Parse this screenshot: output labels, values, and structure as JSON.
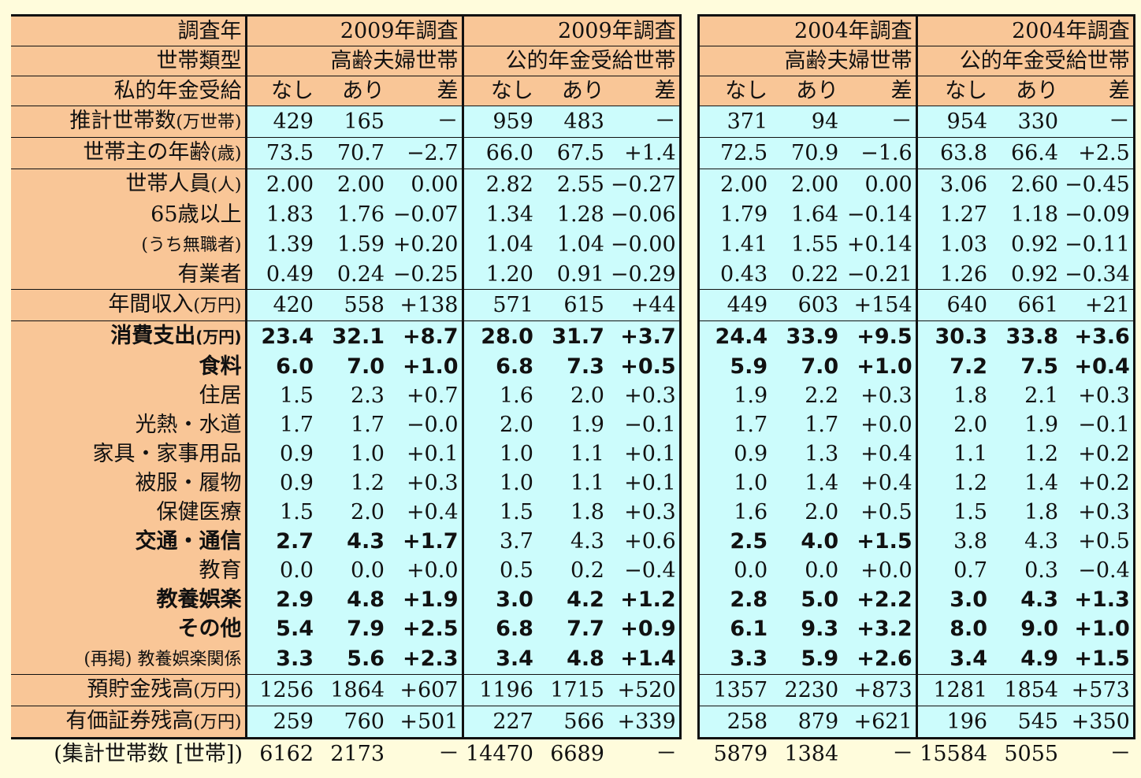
{
  "header_rows": [
    {
      "label": "調査年",
      "groups": [
        "2009年調査",
        "2009年調査",
        "2004年調査",
        "2004年調査"
      ]
    },
    {
      "label": "世帯類型",
      "groups": [
        "高齢夫婦世帯",
        "公的年金受給世帯",
        "高齢夫婦世帯",
        "公的年金受給世帯"
      ]
    },
    {
      "label": "私的年金受給",
      "subheads": [
        "なし",
        "あり",
        "差"
      ]
    }
  ],
  "rows": [
    {
      "label": "推計世帯数",
      "unit": "(万世帯)",
      "indent": 0,
      "bold_groups": [],
      "values": [
        [
          "429",
          "165",
          "－"
        ],
        [
          "959",
          "483",
          "－"
        ],
        [
          "371",
          "94",
          "－"
        ],
        [
          "954",
          "330",
          "－"
        ]
      ]
    },
    {
      "label": "世帯主の年齢",
      "unit": "(歳)",
      "indent": 0,
      "bold_groups": [],
      "values": [
        [
          "73.5",
          "70.7",
          "−2.7"
        ],
        [
          "66.0",
          "67.5",
          "+1.4"
        ],
        [
          "72.5",
          "70.9",
          "−1.6"
        ],
        [
          "63.8",
          "66.4",
          "+2.5"
        ]
      ]
    },
    {
      "label": "世帯人員",
      "unit": "(人)",
      "indent": 0,
      "bold_groups": [],
      "values": [
        [
          "2.00",
          "2.00",
          "0.00"
        ],
        [
          "2.82",
          "2.55",
          "−0.27"
        ],
        [
          "2.00",
          "2.00",
          "0.00"
        ],
        [
          "3.06",
          "2.60",
          "−0.45"
        ]
      ]
    },
    {
      "label": "65歳以上",
      "unit": "",
      "indent": 1,
      "bold_groups": [],
      "values": [
        [
          "1.83",
          "1.76",
          "−0.07"
        ],
        [
          "1.34",
          "1.28",
          "−0.06"
        ],
        [
          "1.79",
          "1.64",
          "−0.14"
        ],
        [
          "1.27",
          "1.18",
          "−0.09"
        ]
      ]
    },
    {
      "label": "(うち無職者)",
      "unit": "",
      "indent": 1,
      "small": true,
      "bold_groups": [],
      "values": [
        [
          "1.39",
          "1.59",
          "+0.20"
        ],
        [
          "1.04",
          "1.04",
          "−0.00"
        ],
        [
          "1.41",
          "1.55",
          "+0.14"
        ],
        [
          "1.03",
          "0.92",
          "−0.11"
        ]
      ]
    },
    {
      "label": "有業者",
      "unit": "",
      "indent": 1,
      "bold_groups": [],
      "values": [
        [
          "0.49",
          "0.24",
          "−0.25"
        ],
        [
          "1.20",
          "0.91",
          "−0.29"
        ],
        [
          "0.43",
          "0.22",
          "−0.21"
        ],
        [
          "1.26",
          "0.92",
          "−0.34"
        ]
      ]
    },
    {
      "label": "年間収入",
      "unit": "(万円)",
      "indent": 0,
      "bold_groups": [],
      "values": [
        [
          "420",
          "558",
          "+138"
        ],
        [
          "571",
          "615",
          "+44"
        ],
        [
          "449",
          "603",
          "+154"
        ],
        [
          "640",
          "661",
          "+21"
        ]
      ]
    },
    {
      "label": "消費支出",
      "unit": "(万円)",
      "indent": 0,
      "bold_label": true,
      "bold_groups": [
        0,
        1,
        2,
        3
      ],
      "values": [
        [
          "23.4",
          "32.1",
          "+8.7"
        ],
        [
          "28.0",
          "31.7",
          "+3.7"
        ],
        [
          "24.4",
          "33.9",
          "+9.5"
        ],
        [
          "30.3",
          "33.8",
          "+3.6"
        ]
      ]
    },
    {
      "label": "食料",
      "unit": "",
      "indent": 2,
      "bold_label": true,
      "bold_groups": [
        0,
        1,
        2,
        3
      ],
      "values": [
        [
          "6.0",
          "7.0",
          "+1.0"
        ],
        [
          "6.8",
          "7.3",
          "+0.5"
        ],
        [
          "5.9",
          "7.0",
          "+1.0"
        ],
        [
          "7.2",
          "7.5",
          "+0.4"
        ]
      ]
    },
    {
      "label": "住居",
      "unit": "",
      "indent": 2,
      "bold_groups": [],
      "values": [
        [
          "1.5",
          "2.3",
          "+0.7"
        ],
        [
          "1.6",
          "2.0",
          "+0.3"
        ],
        [
          "1.9",
          "2.2",
          "+0.3"
        ],
        [
          "1.8",
          "2.1",
          "+0.3"
        ]
      ]
    },
    {
      "label": "光熱・水道",
      "unit": "",
      "indent": 2,
      "bold_groups": [],
      "values": [
        [
          "1.7",
          "1.7",
          "−0.0"
        ],
        [
          "2.0",
          "1.9",
          "−0.1"
        ],
        [
          "1.7",
          "1.7",
          "+0.0"
        ],
        [
          "2.0",
          "1.9",
          "−0.1"
        ]
      ]
    },
    {
      "label": "家具・家事用品",
      "unit": "",
      "indent": 2,
      "bold_groups": [],
      "values": [
        [
          "0.9",
          "1.0",
          "+0.1"
        ],
        [
          "1.0",
          "1.1",
          "+0.1"
        ],
        [
          "0.9",
          "1.3",
          "+0.4"
        ],
        [
          "1.1",
          "1.2",
          "+0.2"
        ]
      ]
    },
    {
      "label": "被服・履物",
      "unit": "",
      "indent": 2,
      "bold_groups": [],
      "values": [
        [
          "0.9",
          "1.2",
          "+0.3"
        ],
        [
          "1.0",
          "1.1",
          "+0.1"
        ],
        [
          "1.0",
          "1.4",
          "+0.4"
        ],
        [
          "1.2",
          "1.4",
          "+0.2"
        ]
      ]
    },
    {
      "label": "保健医療",
      "unit": "",
      "indent": 2,
      "bold_groups": [],
      "values": [
        [
          "1.5",
          "2.0",
          "+0.4"
        ],
        [
          "1.5",
          "1.8",
          "+0.3"
        ],
        [
          "1.6",
          "2.0",
          "+0.5"
        ],
        [
          "1.5",
          "1.8",
          "+0.3"
        ]
      ]
    },
    {
      "label": "交通・通信",
      "unit": "",
      "indent": 2,
      "bold_label": true,
      "bold_groups": [
        0,
        2
      ],
      "values": [
        [
          "2.7",
          "4.3",
          "+1.7"
        ],
        [
          "3.7",
          "4.3",
          "+0.6"
        ],
        [
          "2.5",
          "4.0",
          "+1.5"
        ],
        [
          "3.8",
          "4.3",
          "+0.5"
        ]
      ]
    },
    {
      "label": "教育",
      "unit": "",
      "indent": 2,
      "bold_groups": [],
      "values": [
        [
          "0.0",
          "0.0",
          "+0.0"
        ],
        [
          "0.5",
          "0.2",
          "−0.4"
        ],
        [
          "0.0",
          "0.0",
          "+0.0"
        ],
        [
          "0.7",
          "0.3",
          "−0.4"
        ]
      ]
    },
    {
      "label": "教養娯楽",
      "unit": "",
      "indent": 2,
      "bold_label": true,
      "bold_groups": [
        0,
        1,
        2,
        3
      ],
      "values": [
        [
          "2.9",
          "4.8",
          "+1.9"
        ],
        [
          "3.0",
          "4.2",
          "+1.2"
        ],
        [
          "2.8",
          "5.0",
          "+2.2"
        ],
        [
          "3.0",
          "4.3",
          "+1.3"
        ]
      ]
    },
    {
      "label": "その他",
      "unit": "",
      "indent": 2,
      "bold_label": true,
      "bold_groups": [
        0,
        1,
        2,
        3
      ],
      "values": [
        [
          "5.4",
          "7.9",
          "+2.5"
        ],
        [
          "6.8",
          "7.7",
          "+0.9"
        ],
        [
          "6.1",
          "9.3",
          "+3.2"
        ],
        [
          "8.0",
          "9.0",
          "+1.0"
        ]
      ]
    },
    {
      "label": "(再掲) 教養娯楽関係",
      "unit": "",
      "indent": 1,
      "small": true,
      "bold_groups": [
        0,
        1,
        2,
        3
      ],
      "values": [
        [
          "3.3",
          "5.6",
          "+2.3"
        ],
        [
          "3.4",
          "4.8",
          "+1.4"
        ],
        [
          "3.3",
          "5.9",
          "+2.6"
        ],
        [
          "3.4",
          "4.9",
          "+1.5"
        ]
      ]
    },
    {
      "label": "預貯金残高",
      "unit": "(万円)",
      "indent": 0,
      "bold_groups": [],
      "values": [
        [
          "1256",
          "1864",
          "+607"
        ],
        [
          "1196",
          "1715",
          "+520"
        ],
        [
          "1357",
          "2230",
          "+873"
        ],
        [
          "1281",
          "1854",
          "+573"
        ]
      ]
    },
    {
      "label": "有価証券残高",
      "unit": "(万円)",
      "indent": 0,
      "bold_groups": [],
      "values": [
        [
          "259",
          "760",
          "+501"
        ],
        [
          "227",
          "566",
          "+339"
        ],
        [
          "258",
          "879",
          "+621"
        ],
        [
          "196",
          "545",
          "+350"
        ]
      ]
    }
  ],
  "footer": {
    "label": "(集計世帯数 [世帯])",
    "values": [
      [
        "6162",
        "2173",
        "－"
      ],
      [
        "14470",
        "6689",
        "－"
      ],
      [
        "5879",
        "1384",
        "－"
      ],
      [
        "15584",
        "5055",
        "－"
      ]
    ]
  }
}
